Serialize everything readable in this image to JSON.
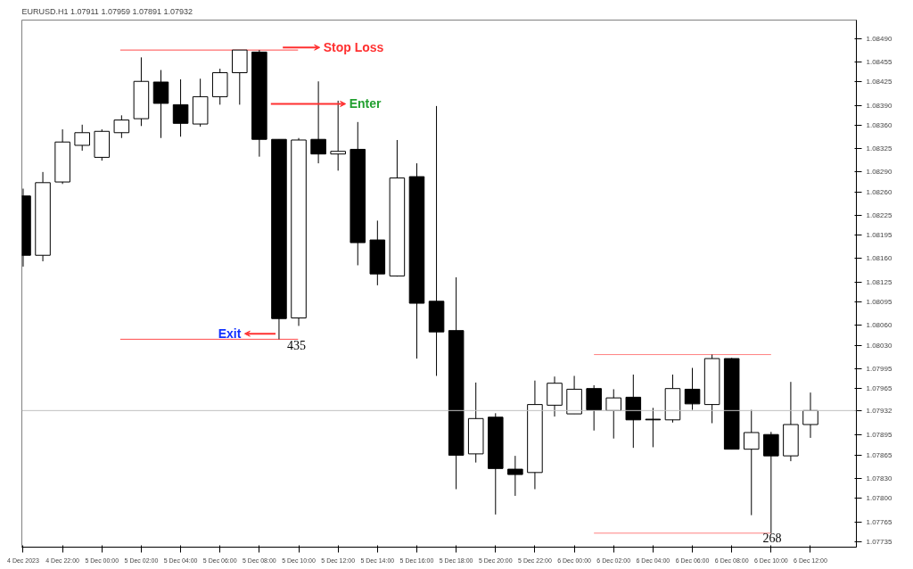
{
  "chart_data": {
    "type": "candlestick",
    "title": "EURUSD.H1  1.07911 1.07959 1.07891 1.07932",
    "x": [
      "2023-12-04T20:00",
      "2023-12-04T21:00",
      "2023-12-04T22:00",
      "2023-12-04T23:00",
      "2023-12-05T00:00",
      "2023-12-05T01:00",
      "2023-12-05T02:00",
      "2023-12-05T03:00",
      "2023-12-05T04:00",
      "2023-12-05T05:00",
      "2023-12-05T06:00",
      "2023-12-05T07:00",
      "2023-12-05T08:00",
      "2023-12-05T09:00",
      "2023-12-05T10:00",
      "2023-12-05T11:00",
      "2023-12-05T12:00",
      "2023-12-05T13:00",
      "2023-12-05T14:00",
      "2023-12-05T15:00",
      "2023-12-05T16:00",
      "2023-12-05T17:00",
      "2023-12-05T18:00",
      "2023-12-05T19:00",
      "2023-12-05T20:00",
      "2023-12-05T21:00",
      "2023-12-05T22:00",
      "2023-12-05T23:00",
      "2023-12-06T00:00",
      "2023-12-06T01:00",
      "2023-12-06T02:00",
      "2023-12-06T03:00",
      "2023-12-06T04:00",
      "2023-12-06T05:00",
      "2023-12-06T06:00",
      "2023-12-06T07:00",
      "2023-12-06T08:00",
      "2023-12-06T09:00",
      "2023-12-06T10:00",
      "2023-12-06T11:00",
      "2023-12-06T12:00"
    ],
    "ohlc": [
      [
        1.08254,
        1.08265,
        1.08148,
        1.08165
      ],
      [
        1.08165,
        1.0829,
        1.08156,
        1.08274
      ],
      [
        1.08275,
        1.08354,
        1.08272,
        1.08335
      ],
      [
        1.0833,
        1.08361,
        1.08322,
        1.08349
      ],
      [
        1.08312,
        1.08354,
        1.08307,
        1.08351
      ],
      [
        1.08349,
        1.08375,
        1.08341,
        1.08368
      ],
      [
        1.0837,
        1.08462,
        1.08359,
        1.08426
      ],
      [
        1.08425,
        1.08443,
        1.08341,
        1.08393
      ],
      [
        1.08391,
        1.08429,
        1.08343,
        1.08363
      ],
      [
        1.08362,
        1.0843,
        1.08358,
        1.08403
      ],
      [
        1.08403,
        1.08445,
        1.08391,
        1.08439
      ],
      [
        1.08439,
        1.08473,
        1.08391,
        1.08473
      ],
      [
        1.0847,
        1.08473,
        1.08313,
        1.08339
      ],
      [
        1.08339,
        1.08339,
        1.08039,
        1.0807
      ],
      [
        1.08071,
        1.08341,
        1.08059,
        1.08338
      ],
      [
        1.08339,
        1.08426,
        1.08303,
        1.08317
      ],
      [
        1.08317,
        1.08397,
        1.08292,
        1.08321
      ],
      [
        1.08324,
        1.08365,
        1.0815,
        1.08184
      ],
      [
        1.08188,
        1.08217,
        1.0812,
        1.08137
      ],
      [
        1.08134,
        1.08338,
        1.08133,
        1.08281
      ],
      [
        1.08283,
        1.08303,
        1.0801,
        1.08093
      ],
      [
        1.08096,
        1.08389,
        1.07984,
        1.0805
      ],
      [
        1.08052,
        1.08132,
        1.07814,
        1.07865
      ],
      [
        1.07867,
        1.07974,
        1.07854,
        1.0792
      ],
      [
        1.07922,
        1.07928,
        1.07776,
        1.07845
      ],
      [
        1.07844,
        1.07864,
        1.07804,
        1.07836
      ],
      [
        1.07839,
        1.07977,
        1.07814,
        1.07941
      ],
      [
        1.0794,
        1.07983,
        1.07923,
        1.07973
      ],
      [
        1.07927,
        1.07984,
        1.07927,
        1.07964
      ],
      [
        1.07965,
        1.0797,
        1.07902,
        1.07933
      ],
      [
        1.07932,
        1.07964,
        1.0789,
        1.07951
      ],
      [
        1.07952,
        1.07986,
        1.07876,
        1.07918
      ],
      [
        1.07919,
        1.07936,
        1.07877,
        1.07918
      ],
      [
        1.07918,
        1.07986,
        1.07914,
        1.07965
      ],
      [
        1.07964,
        1.07996,
        1.07933,
        1.07942
      ],
      [
        1.07941,
        1.08016,
        1.07913,
        1.0801
      ],
      [
        1.0801,
        1.08011,
        1.07874,
        1.07874
      ],
      [
        1.07874,
        1.07933,
        1.07775,
        1.07899
      ],
      [
        1.07896,
        1.079,
        1.07748,
        1.07864
      ],
      [
        1.07864,
        1.07975,
        1.07856,
        1.07911
      ],
      [
        1.07911,
        1.07959,
        1.07891,
        1.07932
      ]
    ],
    "series": [
      {
        "type": "line",
        "color": "#ff4b4b",
        "x": [
          "2023-12-05T00:56",
          "2023-12-05T09:58"
        ],
        "values": [
          1.08473,
          1.08473
        ]
      },
      {
        "type": "line",
        "color": "#ff4b4b",
        "x": [
          "2023-12-05T00:56",
          "2023-12-05T09:58"
        ],
        "values": [
          1.08039,
          1.08039
        ]
      },
      {
        "type": "line",
        "color": "#ff8080",
        "x": [
          "2023-12-06T01:00",
          "2023-12-06T10:00"
        ],
        "values": [
          1.08016,
          1.08016
        ]
      },
      {
        "type": "line",
        "color": "#ff8080",
        "x": [
          "2023-12-06T01:00",
          "2023-12-06T10:00"
        ],
        "values": [
          1.07748,
          1.07748
        ]
      }
    ],
    "ref_lines": [
      {
        "axis": "y",
        "value": 1.07932,
        "label": "1.07932",
        "color": "#c0c0c0"
      }
    ],
    "annotations": [
      "Stop Loss",
      "Enter",
      "Exit",
      "435",
      "268"
    ],
    "xlim": [
      "2023-12-04T19:56",
      "2023-12-06T14:20"
    ],
    "xticks": [
      {
        "value": "2023-12-04T20:00",
        "label": "4 Dec 2023"
      },
      {
        "value": "2023-12-04T22:00",
        "label": "4 Dec 22:00"
      },
      {
        "value": "2023-12-05T00:00",
        "label": "5 Dec 00:00"
      },
      {
        "value": "2023-12-05T02:00",
        "label": "5 Dec 02:00"
      },
      {
        "value": "2023-12-05T04:00",
        "label": "5 Dec 04:00"
      },
      {
        "value": "2023-12-05T06:00",
        "label": "5 Dec 06:00"
      },
      {
        "value": "2023-12-05T08:00",
        "label": "5 Dec 08:00"
      },
      {
        "value": "2023-12-05T10:00",
        "label": "5 Dec 10:00"
      },
      {
        "value": "2023-12-05T12:00",
        "label": "5 Dec 12:00"
      },
      {
        "value": "2023-12-05T14:00",
        "label": "5 Dec 14:00"
      },
      {
        "value": "2023-12-05T16:00",
        "label": "5 Dec 16:00"
      },
      {
        "value": "2023-12-05T18:00",
        "label": "5 Dec 18:00"
      },
      {
        "value": "2023-12-05T20:00",
        "label": "5 Dec 20:00"
      },
      {
        "value": "2023-12-05T22:00",
        "label": "5 Dec 22:00"
      },
      {
        "value": "2023-12-06T00:00",
        "label": "6 Dec 00:00"
      },
      {
        "value": "2023-12-06T02:00",
        "label": "6 Dec 02:00"
      },
      {
        "value": "2023-12-06T04:00",
        "label": "6 Dec 04:00"
      },
      {
        "value": "2023-12-06T06:00",
        "label": "6 Dec 06:00"
      },
      {
        "value": "2023-12-06T08:00",
        "label": "6 Dec 08:00"
      },
      {
        "value": "2023-12-06T10:00",
        "label": "6 Dec 10:00"
      },
      {
        "value": "2023-12-06T12:00",
        "label": "6 Dec 12:00"
      }
    ],
    "ylim": [
      1.07727,
      1.08518
    ],
    "yticks": [
      {
        "value": 1.0849,
        "label": "1.08490"
      },
      1.08455,
      1.08425,
      {
        "value": 1.0839,
        "label": "1.08390"
      },
      {
        "value": 1.0836,
        "label": "1.08360"
      },
      1.08325,
      {
        "value": 1.0829,
        "label": "1.08290"
      },
      {
        "value": 1.0826,
        "label": "1.08260"
      },
      1.08225,
      1.08195,
      {
        "value": 1.0816,
        "label": "1.08160"
      },
      1.08125,
      1.08095,
      {
        "value": 1.0806,
        "label": "1.08060"
      },
      {
        "value": 1.0803,
        "label": "1.08030"
      },
      1.07995,
      1.07965,
      1.07895,
      1.07865,
      {
        "value": 1.0783,
        "label": "1.07830"
      },
      {
        "value": 1.078,
        "label": "1.07800"
      },
      1.07765,
      1.07735
    ]
  }
}
